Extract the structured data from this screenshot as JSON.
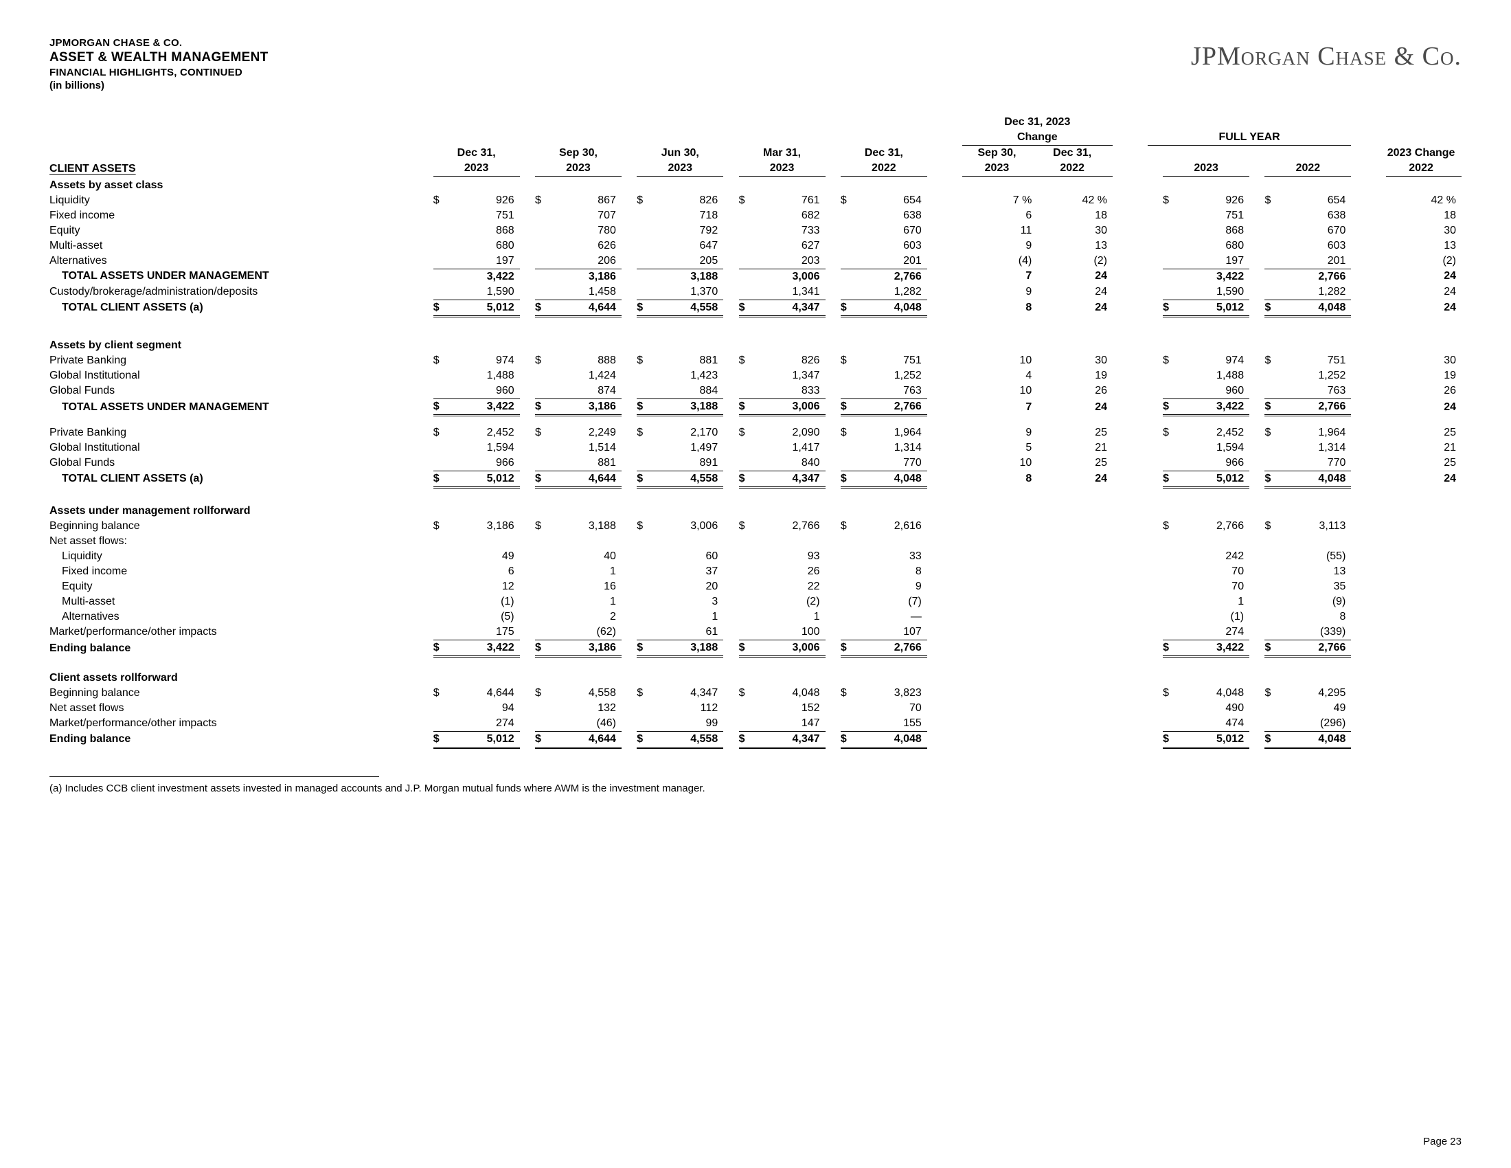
{
  "header": {
    "company_small": "JPMORGAN CHASE & CO.",
    "segment": "ASSET & WEALTH MANAGEMENT",
    "subhead": "FINANCIAL HIGHLIGHTS, CONTINUED",
    "units": "(in billions)",
    "logo_text": "JPMorgan Chase & Co.",
    "page_num": "Page 23"
  },
  "columns": {
    "section_label": "CLIENT ASSETS",
    "periods": [
      "Dec 31,",
      "Sep 30,",
      "Jun 30,",
      "Mar 31,",
      "Dec 31,"
    ],
    "period_years": [
      "2023",
      "2023",
      "2023",
      "2023",
      "2022"
    ],
    "change_top": "Dec 31, 2023",
    "change_label": "Change",
    "change_cols": [
      "Sep 30,",
      "Dec 31,"
    ],
    "change_years": [
      "2023",
      "2022"
    ],
    "fy_label": "FULL YEAR",
    "fy_cols": [
      "2023",
      "2022"
    ],
    "fy_change": "2023 Change",
    "fy_change_year": "2022"
  },
  "sections": {
    "assets_by_class": {
      "title": "Assets by asset class",
      "rows": [
        {
          "label": "Liquidity",
          "sym": "$",
          "v": [
            "926",
            "867",
            "826",
            "761",
            "654"
          ],
          "c": [
            "7 %",
            "42 %"
          ],
          "fy_sym": "$",
          "fy": [
            "926",
            "654"
          ],
          "fyc": "42 %"
        },
        {
          "label": "Fixed income",
          "v": [
            "751",
            "707",
            "718",
            "682",
            "638"
          ],
          "c": [
            "6",
            "18"
          ],
          "fy": [
            "751",
            "638"
          ],
          "fyc": "18"
        },
        {
          "label": "Equity",
          "v": [
            "868",
            "780",
            "792",
            "733",
            "670"
          ],
          "c": [
            "11",
            "30"
          ],
          "fy": [
            "868",
            "670"
          ],
          "fyc": "30"
        },
        {
          "label": "Multi-asset",
          "v": [
            "680",
            "626",
            "647",
            "627",
            "603"
          ],
          "c": [
            "9",
            "13"
          ],
          "fy": [
            "680",
            "603"
          ],
          "fyc": "13"
        },
        {
          "label": "Alternatives",
          "v": [
            "197",
            "206",
            "205",
            "203",
            "201"
          ],
          "c": [
            "(4)",
            "(2)"
          ],
          "fy": [
            "197",
            "201"
          ],
          "fyc": "(2)",
          "sub_bb": true
        }
      ],
      "subtotal": {
        "label": "TOTAL ASSETS UNDER MANAGEMENT",
        "bold": true,
        "indent": 1,
        "v": [
          "3,422",
          "3,186",
          "3,188",
          "3,006",
          "2,766"
        ],
        "c": [
          "7",
          "24"
        ],
        "fy": [
          "3,422",
          "2,766"
        ],
        "fyc": "24"
      },
      "extra": {
        "label": "Custody/brokerage/administration/deposits",
        "v": [
          "1,590",
          "1,458",
          "1,370",
          "1,341",
          "1,282"
        ],
        "c": [
          "9",
          "24"
        ],
        "fy": [
          "1,590",
          "1,282"
        ],
        "fyc": "24",
        "sub_bb": true
      },
      "total": {
        "label": "TOTAL CLIENT ASSETS (a)",
        "bold": true,
        "indent": 1,
        "sym": "$",
        "v": [
          "5,012",
          "4,644",
          "4,558",
          "4,347",
          "4,048"
        ],
        "c": [
          "8",
          "24"
        ],
        "fy_sym": "$",
        "fy": [
          "5,012",
          "4,048"
        ],
        "fyc": "24",
        "grand": true
      }
    },
    "assets_by_segment": {
      "title": "Assets by client segment",
      "rows": [
        {
          "label": "Private Banking",
          "sym": "$",
          "v": [
            "974",
            "888",
            "881",
            "826",
            "751"
          ],
          "c": [
            "10",
            "30"
          ],
          "fy_sym": "$",
          "fy": [
            "974",
            "751"
          ],
          "fyc": "30"
        },
        {
          "label": "Global Institutional",
          "v": [
            "1,488",
            "1,424",
            "1,423",
            "1,347",
            "1,252"
          ],
          "c": [
            "4",
            "19"
          ],
          "fy": [
            "1,488",
            "1,252"
          ],
          "fyc": "19"
        },
        {
          "label": "Global Funds",
          "v": [
            "960",
            "874",
            "884",
            "833",
            "763"
          ],
          "c": [
            "10",
            "26"
          ],
          "fy": [
            "960",
            "763"
          ],
          "fyc": "26",
          "sub_bb": true
        }
      ],
      "subtotal": {
        "label": "TOTAL ASSETS UNDER MANAGEMENT",
        "bold": true,
        "indent": 1,
        "sym": "$",
        "v": [
          "3,422",
          "3,186",
          "3,188",
          "3,006",
          "2,766"
        ],
        "c": [
          "7",
          "24"
        ],
        "fy_sym": "$",
        "fy": [
          "3,422",
          "2,766"
        ],
        "fyc": "24",
        "grand": true
      },
      "rows2": [
        {
          "label": "Private Banking",
          "sym": "$",
          "v": [
            "2,452",
            "2,249",
            "2,170",
            "2,090",
            "1,964"
          ],
          "c": [
            "9",
            "25"
          ],
          "fy_sym": "$",
          "fy": [
            "2,452",
            "1,964"
          ],
          "fyc": "25"
        },
        {
          "label": "Global Institutional",
          "v": [
            "1,594",
            "1,514",
            "1,497",
            "1,417",
            "1,314"
          ],
          "c": [
            "5",
            "21"
          ],
          "fy": [
            "1,594",
            "1,314"
          ],
          "fyc": "21"
        },
        {
          "label": "Global Funds",
          "v": [
            "966",
            "881",
            "891",
            "840",
            "770"
          ],
          "c": [
            "10",
            "25"
          ],
          "fy": [
            "966",
            "770"
          ],
          "fyc": "25",
          "sub_bb": true
        }
      ],
      "total": {
        "label": "TOTAL CLIENT ASSETS (a)",
        "bold": true,
        "indent": 1,
        "sym": "$",
        "v": [
          "5,012",
          "4,644",
          "4,558",
          "4,347",
          "4,048"
        ],
        "c": [
          "8",
          "24"
        ],
        "fy_sym": "$",
        "fy": [
          "5,012",
          "4,048"
        ],
        "fyc": "24",
        "grand": true
      }
    },
    "aum_rollforward": {
      "title": "Assets under management rollforward",
      "rows": [
        {
          "label": "Beginning balance",
          "sym": "$",
          "v": [
            "3,186",
            "3,188",
            "3,006",
            "2,766",
            "2,616"
          ],
          "fy_sym": "$",
          "fy": [
            "2,766",
            "3,113"
          ]
        },
        {
          "label": "Net asset flows:",
          "no_values": true
        },
        {
          "label": "Liquidity",
          "indent": 1,
          "v": [
            "49",
            "40",
            "60",
            "93",
            "33"
          ],
          "fy": [
            "242",
            "(55)"
          ]
        },
        {
          "label": "Fixed income",
          "indent": 1,
          "v": [
            "6",
            "1",
            "37",
            "26",
            "8"
          ],
          "fy": [
            "70",
            "13"
          ]
        },
        {
          "label": "Equity",
          "indent": 1,
          "v": [
            "12",
            "16",
            "20",
            "22",
            "9"
          ],
          "fy": [
            "70",
            "35"
          ]
        },
        {
          "label": "Multi-asset",
          "indent": 1,
          "v": [
            "(1)",
            "1",
            "3",
            "(2)",
            "(7)"
          ],
          "fy": [
            "1",
            "(9)"
          ]
        },
        {
          "label": "Alternatives",
          "indent": 1,
          "v": [
            "(5)",
            "2",
            "1",
            "1",
            "—"
          ],
          "fy": [
            "(1)",
            "8"
          ]
        },
        {
          "label": "Market/performance/other impacts",
          "v": [
            "175",
            "(62)",
            "61",
            "100",
            "107"
          ],
          "fy": [
            "274",
            "(339)"
          ],
          "sub_bb": true
        }
      ],
      "total": {
        "label": "Ending balance",
        "bold": true,
        "sym": "$",
        "v": [
          "3,422",
          "3,186",
          "3,188",
          "3,006",
          "2,766"
        ],
        "fy_sym": "$",
        "fy": [
          "3,422",
          "2,766"
        ],
        "grand": true
      }
    },
    "client_rollforward": {
      "title": "Client assets rollforward",
      "rows": [
        {
          "label": "Beginning balance",
          "sym": "$",
          "v": [
            "4,644",
            "4,558",
            "4,347",
            "4,048",
            "3,823"
          ],
          "fy_sym": "$",
          "fy": [
            "4,048",
            "4,295"
          ]
        },
        {
          "label": "Net asset flows",
          "v": [
            "94",
            "132",
            "112",
            "152",
            "70"
          ],
          "fy": [
            "490",
            "49"
          ]
        },
        {
          "label": "Market/performance/other impacts",
          "v": [
            "274",
            "(46)",
            "99",
            "147",
            "155"
          ],
          "fy": [
            "474",
            "(296)"
          ],
          "sub_bb": true
        }
      ],
      "total": {
        "label": "Ending balance",
        "bold": true,
        "sym": "$",
        "v": [
          "5,012",
          "4,644",
          "4,558",
          "4,347",
          "4,048"
        ],
        "fy_sym": "$",
        "fy": [
          "5,012",
          "4,048"
        ],
        "grand": true
      }
    }
  },
  "footnote": "(a) Includes CCB client investment assets invested in managed accounts and J.P. Morgan mutual funds where AWM is the investment manager."
}
